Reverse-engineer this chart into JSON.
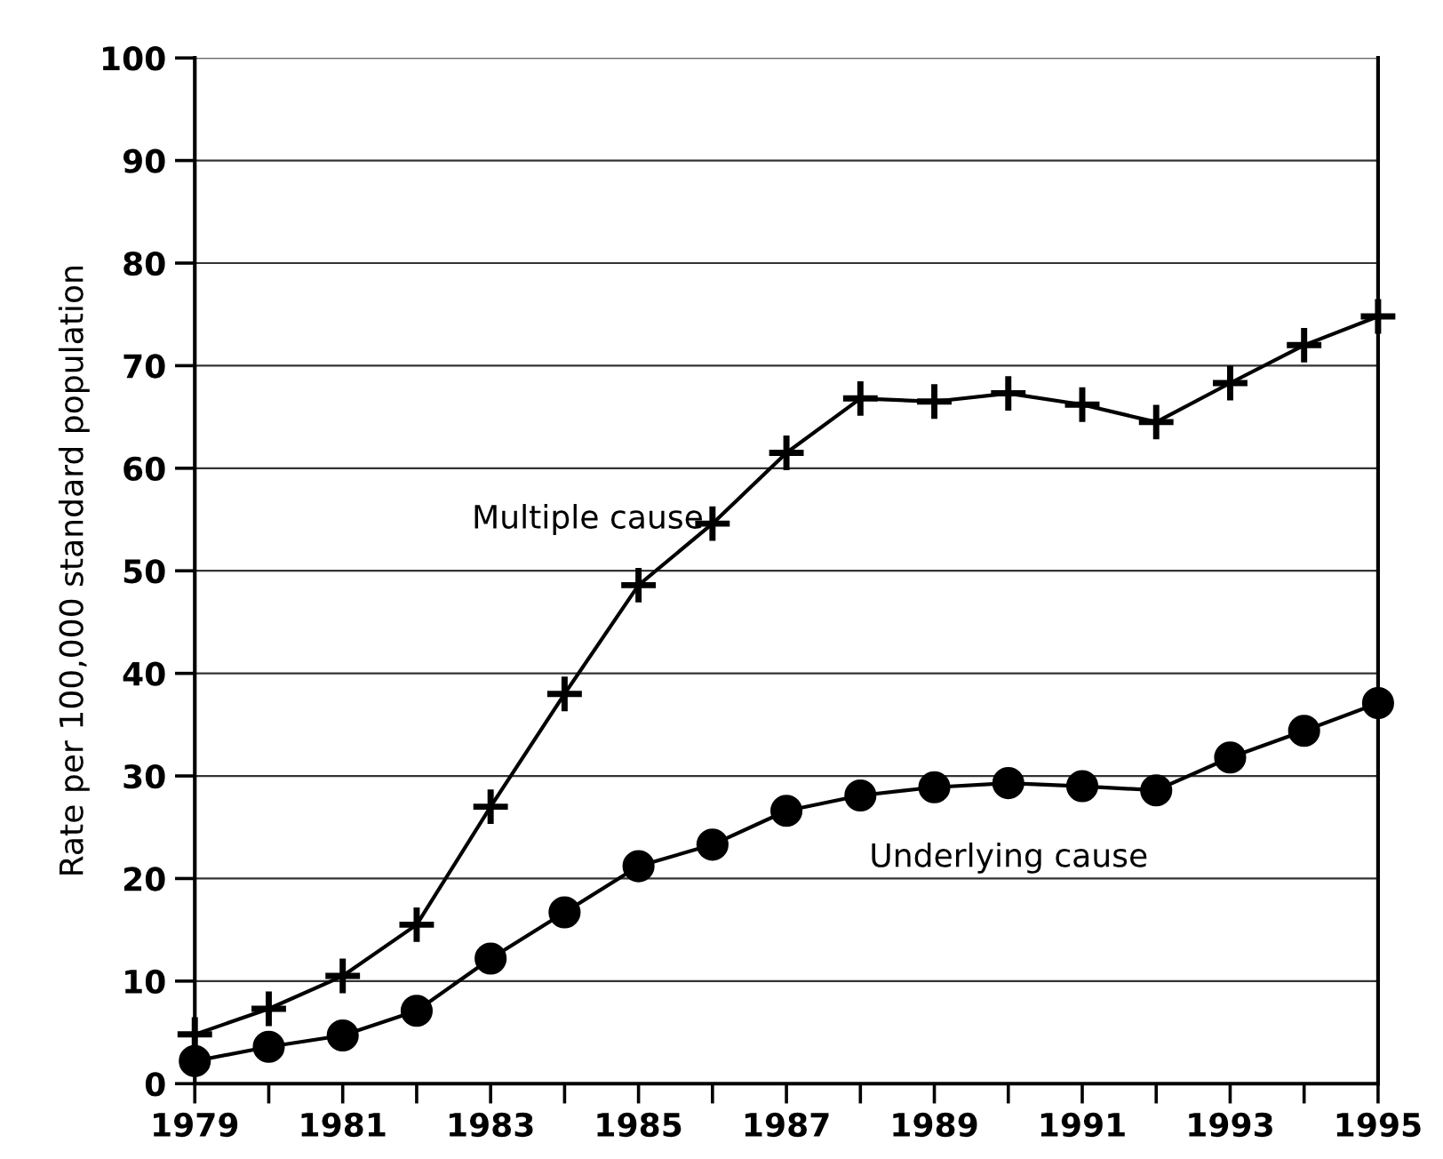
{
  "chart_data": {
    "type": "line",
    "ylabel": "Rate per 100,000 standard population",
    "x": [
      1979,
      1980,
      1981,
      1982,
      1983,
      1984,
      1985,
      1986,
      1987,
      1988,
      1989,
      1990,
      1991,
      1992,
      1993,
      1994,
      1995
    ],
    "series": [
      {
        "color": "#000000",
        "marker": "cross",
        "values": [
          4.8,
          7.3,
          10.5,
          15.5,
          27,
          38,
          48.6,
          54.6,
          61.5,
          66.8,
          66.5,
          67.3,
          66.2,
          64.5,
          68.3,
          72,
          74.8
        ]
      },
      {
        "color": "#000000",
        "marker": "circle",
        "values": [
          2.2,
          3.6,
          4.7,
          7.1,
          12.2,
          16.7,
          21.2,
          23.3,
          26.6,
          28.1,
          28.9,
          29.3,
          29.0,
          28.6,
          31.8,
          34.4,
          37.1
        ]
      }
    ],
    "annotations": [
      "Multiple cause",
      "Underlying cause"
    ],
    "xlim": [
      1979,
      1995
    ],
    "ylim": [
      0,
      100
    ],
    "xticks": [
      1979,
      {
        "value": 1980,
        "label": null
      },
      1981,
      {
        "value": 1982,
        "label": null
      },
      1983,
      {
        "value": 1984,
        "label": null
      },
      1985,
      {
        "value": 1986,
        "label": null
      },
      1987,
      {
        "value": 1988,
        "label": null
      },
      1989,
      {
        "value": 1990,
        "label": null
      },
      1991,
      {
        "value": 1992,
        "label": null
      },
      1993,
      {
        "value": 1994,
        "label": null
      },
      1995
    ],
    "yticks": [
      0,
      10,
      20,
      30,
      40,
      50,
      60,
      70,
      80,
      90,
      100
    ],
    "grid": "y",
    "line_style": "solid",
    "legend": false
  }
}
